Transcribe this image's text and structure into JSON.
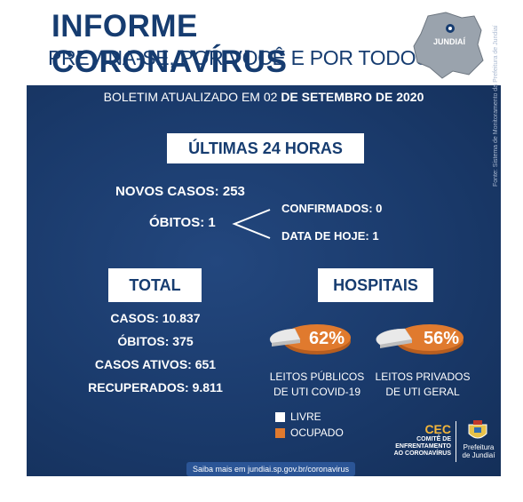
{
  "header": {
    "title": "INFORME CORONAVÍRUS",
    "subtitle": "PREVINA-SE, POR VOCÊ E POR TODOS",
    "map_label": "JUNDIAÍ"
  },
  "bulletin": {
    "prefix": "BOLETIM  ATUALIZADO EM 02",
    "date_bold": "DE SETEMBRO DE 2020"
  },
  "last24": {
    "heading": "ÚLTIMAS 24 HORAS",
    "new_cases": "NOVOS CASOS: 253",
    "deaths": "ÓBITOS:  1",
    "confirmed": "CONFIRMADOS: 0",
    "today": "DATA DE HOJE: 1"
  },
  "total": {
    "heading": "TOTAL",
    "cases": "CASOS: 10.837",
    "deaths": "ÓBITOS: 375",
    "active": "CASOS ATIVOS: 651",
    "recovered": "RECUPERADOS: 9.811"
  },
  "hospitals": {
    "heading": "HOSPITAIS",
    "public_pct": "62%",
    "public_value": 62,
    "public_label_1": "LEITOS PÚBLICOS",
    "public_label_2": "DE UTI COVID-19",
    "private_pct": "56%",
    "private_value": 56,
    "private_label_1": "LEITOS PRIVADOS",
    "private_label_2": "DE UTI GERAL"
  },
  "legend": {
    "free": "LIVRE",
    "occupied": "OCUPADO"
  },
  "colors": {
    "navy": "#1a3a6b",
    "orange": "#e07a2e",
    "white": "#ffffff"
  },
  "cec": {
    "abbr": "CEC",
    "line1": "COMITÊ DE",
    "line2": "ENFRENTAMENTO",
    "line3": "AO CORONAVÍRUS"
  },
  "prefeitura": {
    "line1": "Prefeitura",
    "line2": "de Jundiaí"
  },
  "footer": {
    "text": "Saiba mais em jundiai.sp.gov.br/coronavirus"
  },
  "source": "Fonte: Sistema de Monitoramento da Prefeitura de Jundiaí"
}
